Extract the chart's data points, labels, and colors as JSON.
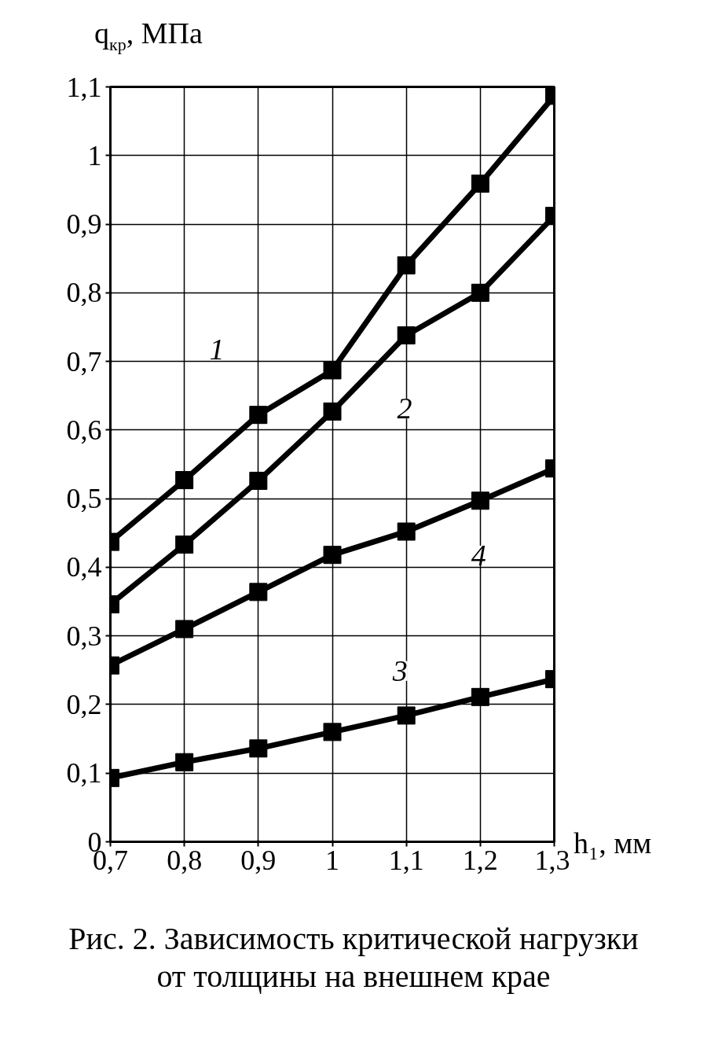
{
  "chart_data": {
    "type": "line",
    "title": "Рис. 2. Зависимость критической нагрузки от толщины на внешнем крае",
    "xlabel": "h₁, мм",
    "ylabel": "q$_{кр}$, МПа",
    "x": [
      0.7,
      0.8,
      0.9,
      1.0,
      1.1,
      1.2,
      1.3
    ],
    "series": [
      {
        "name": "1",
        "color": "#000000",
        "values": [
          0.437,
          0.527,
          0.622,
          0.687,
          0.84,
          0.959,
          1.087
        ]
      },
      {
        "name": "2",
        "color": "#000000",
        "values": [
          0.346,
          0.433,
          0.526,
          0.627,
          0.738,
          0.8,
          0.912
        ]
      },
      {
        "name": "3",
        "color": "#000000",
        "values": [
          0.093,
          0.116,
          0.136,
          0.16,
          0.184,
          0.211,
          0.237
        ]
      },
      {
        "name": "4",
        "color": "#000000",
        "values": [
          0.257,
          0.31,
          0.364,
          0.418,
          0.452,
          0.497,
          0.544
        ]
      }
    ],
    "xlim": [
      0.7,
      1.3
    ],
    "ylim": [
      0,
      1.1
    ],
    "xticks": [
      {
        "value": 0.7,
        "label": "0,7"
      },
      {
        "value": 0.8,
        "label": "0,8"
      },
      {
        "value": 0.9,
        "label": "0,9"
      },
      1,
      {
        "value": 1.1,
        "label": "1,1"
      },
      {
        "value": 1.2,
        "label": "1,2"
      },
      {
        "value": 1.3,
        "label": "1,3"
      }
    ],
    "yticks": [
      0,
      {
        "value": 0.1,
        "label": "0,1"
      },
      {
        "value": 0.2,
        "label": "0,2"
      },
      {
        "value": 0.3,
        "label": "0,3"
      },
      {
        "value": 0.4,
        "label": "0,4"
      },
      {
        "value": 0.5,
        "label": "0,5"
      },
      {
        "value": 0.6,
        "label": "0,6"
      },
      {
        "value": 0.7,
        "label": "0,7"
      },
      {
        "value": 0.8,
        "label": "0,8"
      },
      {
        "value": 0.9,
        "label": "0,9"
      },
      1,
      {
        "value": 1.1,
        "label": "1,1"
      }
    ],
    "grid": true,
    "marker": "square",
    "line_style": "solid"
  }
}
